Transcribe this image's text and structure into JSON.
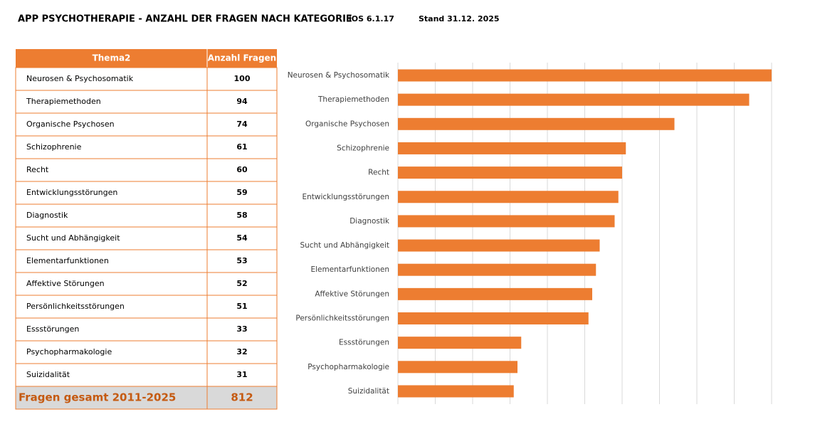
{
  "header": {
    "title": "APP PSYCHOTHERAPIE - ANZAHL DER FRAGEN NACH KATEGORIE",
    "version": "iOS 6.1.17",
    "date": "Stand 31.12. 2025"
  },
  "table": {
    "columns": [
      "Thema2",
      "Anzahl Fragen"
    ],
    "rows": [
      [
        "Neurosen & Psychosomatik",
        "100"
      ],
      [
        "Therapiemethoden",
        "94"
      ],
      [
        "Organische Psychosen",
        "74"
      ],
      [
        "Schizophrenie",
        "61"
      ],
      [
        "Recht",
        "60"
      ],
      [
        "Entwicklungsstörungen",
        "59"
      ],
      [
        "Diagnostik",
        "58"
      ],
      [
        "Sucht und Abhängigkeit",
        "54"
      ],
      [
        "Elementarfunktionen",
        "53"
      ],
      [
        "Affektive Störungen",
        "52"
      ],
      [
        "Persönlichkeitsstörungen",
        "51"
      ],
      [
        "Essstörungen",
        "33"
      ],
      [
        "Psychopharmakologie",
        "32"
      ],
      [
        "Suizidalität",
        "31"
      ]
    ],
    "total": [
      "Fragen gesamt 2011-2025",
      "812"
    ]
  },
  "chart_data": {
    "type": "hbar",
    "categories": [
      "Neurosen & Psychosomatik",
      "Therapiemethoden",
      "Organische Psychosen",
      "Schizophrenie",
      "Recht",
      "Entwicklungsstörungen",
      "Diagnostik",
      "Sucht und Abhängigkeit",
      "Elementarfunktionen",
      "Affektive Störungen",
      "Persönlichkeitsstörungen",
      "Essstörungen",
      "Psychopharmakologie",
      "Suizidalität"
    ],
    "values": [
      100,
      94,
      74,
      61,
      60,
      59,
      58,
      54,
      53,
      52,
      51,
      33,
      32,
      31
    ],
    "color": "#ed7d31",
    "xlim": [
      0,
      100
    ],
    "xticks": [
      0,
      10,
      20,
      30,
      40,
      50,
      60,
      70,
      80,
      90,
      100
    ],
    "grid": true,
    "show_tick_labels": false
  }
}
